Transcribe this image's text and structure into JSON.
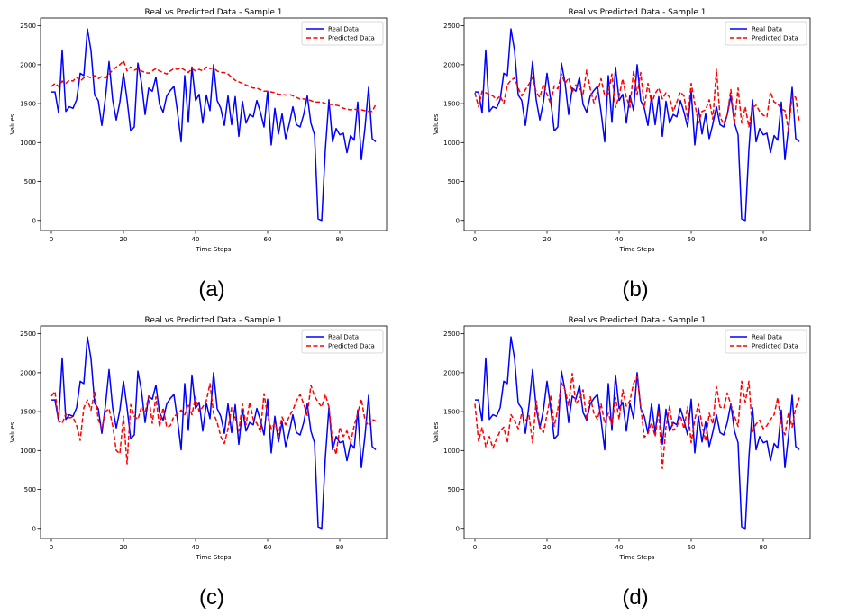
{
  "chart_data": [
    {
      "type": "line",
      "title": "Real vs Predicted Data - Sample 1",
      "xlabel": "Time Steps",
      "ylabel": "Values",
      "caption": "(a)",
      "xlim": [
        -3,
        93
      ],
      "ylim": [
        -130,
        2600
      ],
      "xticks": [
        0,
        20,
        40,
        60,
        80
      ],
      "yticks": [
        0,
        500,
        1000,
        1500,
        2000,
        2500
      ],
      "legend_position": "top-right",
      "series": [
        {
          "name": "Real Data",
          "color": "#0000ff",
          "dash": "solid",
          "values": [
            1650,
            1650,
            1380,
            2190,
            1400,
            1460,
            1440,
            1550,
            1890,
            1860,
            2460,
            2180,
            1610,
            1540,
            1220,
            1580,
            2040,
            1550,
            1290,
            1520,
            1890,
            1550,
            1150,
            1200,
            2020,
            1770,
            1360,
            1700,
            1660,
            1840,
            1490,
            1390,
            1600,
            1670,
            1720,
            1390,
            1010,
            1860,
            1260,
            1970,
            1540,
            1620,
            1250,
            1610,
            1410,
            2000,
            1540,
            1440,
            1220,
            1600,
            1230,
            1590,
            1080,
            1530,
            1250,
            1360,
            1330,
            1540,
            1390,
            1200,
            1660,
            970,
            1440,
            1110,
            1370,
            1050,
            1240,
            1460,
            1230,
            1200,
            1360,
            1600,
            1250,
            1100,
            20,
            0,
            910,
            1550,
            1010,
            1180,
            1100,
            1120,
            870,
            1090,
            1030,
            1520,
            780,
            1190,
            1710,
            1050,
            1010
          ]
        },
        {
          "name": "Predicted Data",
          "color": "#ff0000",
          "dash": "dashed",
          "values": [
            1720,
            1760,
            1720,
            1790,
            1760,
            1800,
            1790,
            1840,
            1790,
            1830,
            1850,
            1830,
            1860,
            1820,
            1850,
            1830,
            1880,
            1930,
            1970,
            2000,
            2050,
            1920,
            1970,
            1930,
            1950,
            1920,
            1900,
            1890,
            1920,
            1950,
            1920,
            1900,
            1880,
            1920,
            1950,
            1940,
            1960,
            1930,
            1900,
            1950,
            1920,
            1940,
            1920,
            1970,
            1950,
            1960,
            1920,
            1900,
            1900,
            1880,
            1840,
            1800,
            1780,
            1760,
            1740,
            1720,
            1700,
            1700,
            1680,
            1660,
            1660,
            1650,
            1640,
            1620,
            1620,
            1610,
            1620,
            1600,
            1580,
            1560,
            1560,
            1550,
            1540,
            1520,
            1520,
            1520,
            1500,
            1490,
            1490,
            1480,
            1470,
            1440,
            1430,
            1420,
            1430,
            1420,
            1420,
            1410,
            1400,
            1400,
            1490
          ]
        }
      ]
    },
    {
      "type": "line",
      "title": "Real vs Predicted Data - Sample 1",
      "xlabel": "Time Steps",
      "ylabel": "Values",
      "caption": "(b)",
      "xlim": [
        -3,
        93
      ],
      "ylim": [
        -130,
        2600
      ],
      "xticks": [
        0,
        20,
        40,
        60,
        80
      ],
      "yticks": [
        0,
        500,
        1000,
        1500,
        2000,
        2500
      ],
      "legend_position": "top-right",
      "series": [
        {
          "name": "Real Data",
          "color": "#0000ff",
          "dash": "solid",
          "values": [
            1650,
            1650,
            1380,
            2190,
            1400,
            1460,
            1440,
            1550,
            1890,
            1860,
            2460,
            2180,
            1610,
            1540,
            1220,
            1580,
            2040,
            1550,
            1290,
            1520,
            1890,
            1550,
            1150,
            1200,
            2020,
            1770,
            1360,
            1700,
            1660,
            1840,
            1490,
            1390,
            1600,
            1670,
            1720,
            1390,
            1010,
            1860,
            1260,
            1970,
            1540,
            1620,
            1250,
            1610,
            1410,
            2000,
            1540,
            1440,
            1220,
            1600,
            1230,
            1590,
            1080,
            1530,
            1250,
            1360,
            1330,
            1540,
            1390,
            1200,
            1660,
            970,
            1440,
            1110,
            1370,
            1050,
            1240,
            1460,
            1230,
            1200,
            1360,
            1600,
            1250,
            1100,
            20,
            0,
            910,
            1550,
            1010,
            1180,
            1100,
            1120,
            870,
            1090,
            1030,
            1520,
            780,
            1190,
            1710,
            1050,
            1010
          ]
        },
        {
          "name": "Predicted Data",
          "color": "#ff0000",
          "dash": "dashed",
          "values": [
            1640,
            1460,
            1660,
            1640,
            1620,
            1600,
            1550,
            1600,
            1500,
            1740,
            1800,
            1830,
            1700,
            1600,
            1680,
            1750,
            1840,
            1650,
            1580,
            1750,
            1620,
            1500,
            1730,
            1690,
            1880,
            1760,
            1830,
            1650,
            1740,
            1700,
            1620,
            1930,
            1690,
            1510,
            1650,
            1820,
            1600,
            1630,
            1880,
            1450,
            1600,
            1820,
            1580,
            1450,
            1920,
            1620,
            1900,
            1450,
            1760,
            1500,
            1630,
            1700,
            1560,
            1640,
            1580,
            1400,
            1520,
            1650,
            1600,
            1300,
            1760,
            1500,
            1250,
            1400,
            1420,
            1550,
            1300,
            1940,
            1330,
            1240,
            1360,
            1680,
            1250,
            1700,
            1250,
            1460,
            1200,
            1450,
            1480,
            1400,
            1350,
            1330,
            1650,
            1520,
            1500,
            1430,
            1410,
            1160,
            1610,
            1580,
            1260
          ]
        }
      ]
    },
    {
      "type": "line",
      "title": "Real vs Predicted Data - Sample 1",
      "xlabel": "Time Steps",
      "ylabel": "Values",
      "caption": "(c)",
      "xlim": [
        -3,
        93
      ],
      "ylim": [
        -130,
        2600
      ],
      "xticks": [
        0,
        20,
        40,
        60,
        80
      ],
      "yticks": [
        0,
        500,
        1000,
        1500,
        2000,
        2500
      ],
      "legend_position": "top-right",
      "series": [
        {
          "name": "Real Data",
          "color": "#0000ff",
          "dash": "solid",
          "values": [
            1650,
            1650,
            1380,
            2190,
            1400,
            1460,
            1440,
            1550,
            1890,
            1860,
            2460,
            2180,
            1610,
            1540,
            1220,
            1580,
            2040,
            1550,
            1290,
            1520,
            1890,
            1550,
            1150,
            1200,
            2020,
            1770,
            1360,
            1700,
            1660,
            1840,
            1490,
            1390,
            1600,
            1670,
            1720,
            1390,
            1010,
            1860,
            1260,
            1970,
            1540,
            1620,
            1250,
            1610,
            1410,
            2000,
            1540,
            1440,
            1220,
            1600,
            1230,
            1590,
            1080,
            1530,
            1250,
            1360,
            1330,
            1540,
            1390,
            1200,
            1660,
            970,
            1440,
            1110,
            1370,
            1050,
            1240,
            1460,
            1230,
            1200,
            1360,
            1600,
            1250,
            1100,
            20,
            0,
            910,
            1550,
            1010,
            1180,
            1100,
            1120,
            870,
            1090,
            1030,
            1520,
            780,
            1190,
            1710,
            1050,
            1010
          ]
        },
        {
          "name": "Predicted Data",
          "color": "#ff0000",
          "dash": "dashed",
          "values": [
            1700,
            1760,
            1380,
            1350,
            1470,
            1420,
            1430,
            1320,
            1130,
            1550,
            1650,
            1520,
            1760,
            1400,
            1280,
            1500,
            1540,
            1320,
            1000,
            960,
            1440,
            830,
            1590,
            1440,
            1400,
            1560,
            1480,
            1700,
            1350,
            1690,
            1300,
            1550,
            1300,
            1320,
            1440,
            1470,
            1520,
            1460,
            1600,
            1460,
            1690,
            1500,
            1560,
            1640,
            1860,
            1480,
            1360,
            1180,
            1090,
            1280,
            1550,
            1420,
            1250,
            1600,
            1330,
            1620,
            1400,
            1350,
            1240,
            1730,
            1440,
            1280,
            1350,
            1200,
            1430,
            1330,
            1440,
            1520,
            1640,
            1720,
            1600,
            1450,
            1840,
            1700,
            1620,
            1560,
            1720,
            1560,
            1110,
            950,
            1300,
            1180,
            1250,
            1100,
            1320,
            1480,
            1660,
            1390,
            1320,
            1400,
            1380
          ]
        }
      ]
    },
    {
      "type": "line",
      "title": "Real vs Predicted Data - Sample 1",
      "xlabel": "Time Steps",
      "ylabel": "Values",
      "caption": "(d)",
      "xlim": [
        -3,
        93
      ],
      "ylim": [
        -130,
        2600
      ],
      "xticks": [
        0,
        20,
        40,
        60,
        80
      ],
      "yticks": [
        0,
        500,
        1000,
        1500,
        2000,
        2500
      ],
      "legend_position": "top-right",
      "series": [
        {
          "name": "Real Data",
          "color": "#0000ff",
          "dash": "solid",
          "values": [
            1650,
            1650,
            1380,
            2190,
            1400,
            1460,
            1440,
            1550,
            1890,
            1860,
            2460,
            2180,
            1610,
            1540,
            1220,
            1580,
            2040,
            1550,
            1290,
            1520,
            1890,
            1550,
            1150,
            1200,
            2020,
            1770,
            1360,
            1700,
            1660,
            1840,
            1490,
            1390,
            1600,
            1670,
            1720,
            1390,
            1010,
            1860,
            1260,
            1970,
            1540,
            1620,
            1250,
            1610,
            1410,
            2000,
            1540,
            1440,
            1220,
            1600,
            1230,
            1590,
            1080,
            1530,
            1250,
            1360,
            1330,
            1540,
            1390,
            1200,
            1660,
            970,
            1440,
            1110,
            1370,
            1050,
            1240,
            1460,
            1230,
            1200,
            1360,
            1600,
            1250,
            1100,
            20,
            0,
            910,
            1550,
            1010,
            1180,
            1100,
            1120,
            870,
            1090,
            1030,
            1520,
            780,
            1190,
            1710,
            1050,
            1010
          ]
        },
        {
          "name": "Predicted Data",
          "color": "#ff0000",
          "dash": "dashed",
          "values": [
            1600,
            1120,
            1300,
            1050,
            1180,
            1030,
            1150,
            1250,
            1300,
            1100,
            1460,
            1390,
            1280,
            1480,
            1380,
            1450,
            1100,
            1640,
            1300,
            1230,
            1460,
            1710,
            1310,
            1530,
            1870,
            1780,
            1580,
            1990,
            1600,
            1660,
            1780,
            1400,
            1690,
            1480,
            1400,
            1600,
            1350,
            1480,
            1330,
            1680,
            1400,
            1780,
            1570,
            1640,
            1860,
            1950,
            1560,
            1170,
            1220,
            1360,
            1180,
            1510,
            770,
            1300,
            1570,
            1260,
            1300,
            1450,
            1280,
            1560,
            1100,
            1400,
            1600,
            1330,
            1120,
            1480,
            1340,
            1820,
            1560,
            1540,
            1740,
            1590,
            1440,
            1310,
            1890,
            1620,
            1890,
            1240,
            1340,
            1390,
            1280,
            1320,
            1400,
            1460,
            1680,
            1330,
            1200,
            1490,
            1300,
            1550,
            1680
          ]
        }
      ]
    }
  ]
}
